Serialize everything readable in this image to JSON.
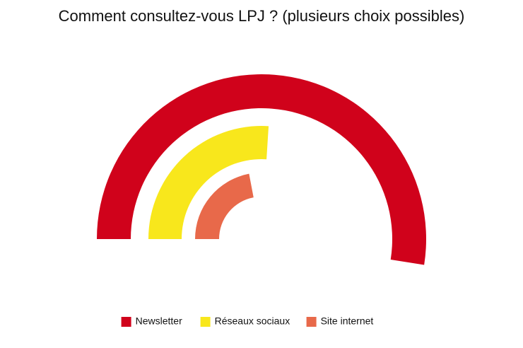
{
  "chart_data": {
    "type": "radial-bar",
    "title": "Comment consultez-vous LPJ ? (plusieurs choix possibles)",
    "ylim": [
      0,
      100
    ],
    "series": [
      {
        "name": "Newsletter",
        "color": "#d0021b",
        "values": [
          52.5
        ]
      },
      {
        "name": "Réseaux sociaux",
        "color": "#f8e71c",
        "values": [
          26
        ]
      },
      {
        "name": "Site internet",
        "color": "#e8694a",
        "values": [
          22
        ]
      }
    ],
    "legend": "bottom"
  }
}
